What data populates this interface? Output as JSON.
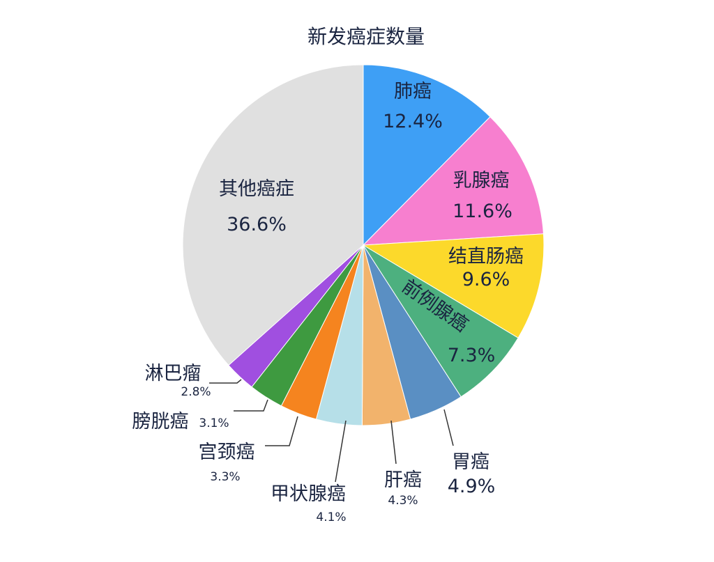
{
  "chart_data": {
    "type": "pie",
    "title": "新发癌症数量",
    "start": "top",
    "direction": "clockwise",
    "slices": [
      {
        "label": "肺癌",
        "value": 12.4,
        "value_label": "12.4%",
        "color": "#3e9ff5"
      },
      {
        "label": "乳腺癌",
        "value": 11.6,
        "value_label": "11.6%",
        "color": "#f77fcf"
      },
      {
        "label": "结直肠癌",
        "value": 9.6,
        "value_label": "9.6%",
        "color": "#fcd92b"
      },
      {
        "label": "前例腺癌",
        "value": 7.3,
        "value_label": "7.3%",
        "color": "#4db07f"
      },
      {
        "label": "胃癌",
        "value": 4.9,
        "value_label": "4.9%",
        "color": "#5a8fc3"
      },
      {
        "label": "肝癌",
        "value": 4.3,
        "value_label": "4.3%",
        "color": "#f2b36c"
      },
      {
        "label": "甲状腺癌",
        "value": 4.1,
        "value_label": "4.1%",
        "color": "#b6dfe8"
      },
      {
        "label": "宫颈癌",
        "value": 3.3,
        "value_label": "3.3%",
        "color": "#f5841f"
      },
      {
        "label": "膀胱癌",
        "value": 3.1,
        "value_label": "3.1%",
        "color": "#3e9a40"
      },
      {
        "label": "淋巴瘤",
        "value": 2.8,
        "value_label": "2.8%",
        "color": "#a04fe0"
      },
      {
        "label": "其他癌症",
        "value": 36.6,
        "value_label": "36.6%",
        "color": "#e0e0e0"
      }
    ]
  }
}
